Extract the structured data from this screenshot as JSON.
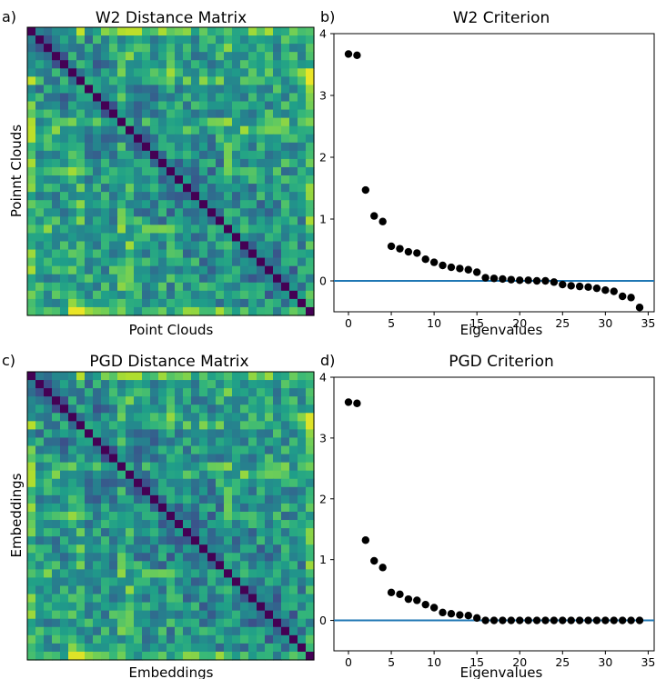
{
  "panels": {
    "a": {
      "letter": "a)",
      "title": "W2 Distance Matrix",
      "xlabel": "Point Clouds",
      "ylabel": "Poinnt Clouds"
    },
    "b": {
      "letter": "b)",
      "title": "W2 Criterion",
      "xlabel": "Eigenvalues"
    },
    "c": {
      "letter": "c)",
      "title": "PGD Distance Matrix",
      "xlabel": "Embeddings",
      "ylabel": "Embeddings"
    },
    "d": {
      "letter": "d)",
      "title": "PGD Criterion",
      "xlabel": "Eigenvalues"
    }
  },
  "colors": {
    "points": "#000000",
    "zero_line": "#1f77b4",
    "colormap": "viridis"
  },
  "chart_data": [
    {
      "id": "a",
      "type": "heatmap",
      "title": "W2 Distance Matrix",
      "xlabel": "Point Clouds",
      "ylabel": "Poinnt Clouds",
      "size": 35,
      "colormap": "viridis",
      "diagonal_value": 0,
      "notes_visible": "symmetric distance matrix; near-zero diagonal; brightest cells near rows/cols 5-6 and 34"
    },
    {
      "id": "b",
      "type": "scatter",
      "title": "W2 Criterion",
      "xlabel": "Eigenvalues",
      "ylabel": "",
      "xlim": [
        -1.7,
        35.7
      ],
      "ylim": [
        -0.5,
        4.0
      ],
      "xticks": [
        0,
        5,
        10,
        15,
        20,
        25,
        30,
        35
      ],
      "yticks": [
        0,
        1,
        2,
        3,
        4
      ],
      "hline": 0,
      "x": [
        0,
        1,
        2,
        3,
        4,
        5,
        6,
        7,
        8,
        9,
        10,
        11,
        12,
        13,
        14,
        15,
        16,
        17,
        18,
        19,
        20,
        21,
        22,
        23,
        24,
        25,
        26,
        27,
        28,
        29,
        30,
        31,
        32,
        33,
        34
      ],
      "y": [
        3.67,
        3.65,
        1.47,
        1.05,
        0.96,
        0.56,
        0.52,
        0.47,
        0.45,
        0.35,
        0.3,
        0.25,
        0.22,
        0.2,
        0.18,
        0.14,
        0.05,
        0.04,
        0.03,
        0.02,
        0.01,
        0.01,
        0.0,
        0.0,
        -0.02,
        -0.06,
        -0.08,
        -0.09,
        -0.1,
        -0.12,
        -0.15,
        -0.17,
        -0.25,
        -0.27,
        -0.43
      ]
    },
    {
      "id": "c",
      "type": "heatmap",
      "title": "PGD Distance Matrix",
      "xlabel": "Embeddings",
      "ylabel": "Embeddings",
      "size": 35,
      "colormap": "viridis",
      "diagonal_value": 0,
      "notes_visible": "symmetric distance matrix, nearly identical pattern to panel a"
    },
    {
      "id": "d",
      "type": "scatter",
      "title": "PGD Criterion",
      "xlabel": "Eigenvalues",
      "ylabel": "",
      "xlim": [
        -1.7,
        35.7
      ],
      "ylim": [
        -0.5,
        4.0
      ],
      "xticks": [
        0,
        5,
        10,
        15,
        20,
        25,
        30,
        35
      ],
      "yticks": [
        0,
        1,
        2,
        3,
        4
      ],
      "hline": 0,
      "x": [
        0,
        1,
        2,
        3,
        4,
        5,
        6,
        7,
        8,
        9,
        10,
        11,
        12,
        13,
        14,
        15,
        16,
        17,
        18,
        19,
        20,
        21,
        22,
        23,
        24,
        25,
        26,
        27,
        28,
        29,
        30,
        31,
        32,
        33,
        34
      ],
      "y": [
        3.59,
        3.57,
        1.32,
        0.98,
        0.87,
        0.46,
        0.43,
        0.35,
        0.33,
        0.26,
        0.21,
        0.13,
        0.11,
        0.09,
        0.08,
        0.04,
        0.0,
        0.0,
        0.0,
        0.0,
        0.0,
        0.0,
        0.0,
        0.0,
        0.0,
        0.0,
        0.0,
        0.0,
        0.0,
        0.0,
        0.0,
        0.0,
        0.0,
        0.0,
        0.0
      ]
    }
  ]
}
